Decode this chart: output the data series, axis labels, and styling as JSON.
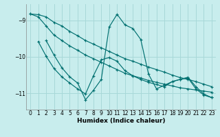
{
  "xlabel": "Humidex (Indice chaleur)",
  "background_color": "#c8eded",
  "grid_color": "#a8d8d8",
  "line_color": "#007070",
  "ylim": [
    -11.45,
    -8.55
  ],
  "xlim": [
    -0.5,
    23.5
  ],
  "yticks": [
    -11,
    -10,
    -9
  ],
  "xticks": [
    0,
    1,
    2,
    3,
    4,
    5,
    6,
    7,
    8,
    9,
    10,
    11,
    12,
    13,
    14,
    15,
    16,
    17,
    18,
    19,
    20,
    21,
    22,
    23
  ],
  "series": [
    {
      "x": [
        0,
        1,
        2,
        3,
        4,
        5,
        6,
        7,
        8,
        9,
        10,
        11,
        12,
        13,
        14,
        15,
        16,
        17,
        18,
        19,
        20,
        21,
        22,
        23
      ],
      "y": [
        -8.82,
        -8.84,
        -8.9,
        -9.05,
        -9.15,
        -9.3,
        -9.42,
        -9.55,
        -9.65,
        -9.75,
        -9.85,
        -9.95,
        -10.05,
        -10.12,
        -10.2,
        -10.28,
        -10.35,
        -10.42,
        -10.5,
        -10.57,
        -10.62,
        -10.68,
        -10.75,
        -10.82
      ]
    },
    {
      "x": [
        0,
        1,
        2,
        3,
        4,
        5,
        6,
        7,
        8,
        9,
        10,
        11,
        12,
        13,
        14,
        15,
        16,
        17,
        18,
        19,
        20,
        21,
        22,
        23
      ],
      "y": [
        -8.82,
        -8.9,
        -9.15,
        -9.4,
        -9.55,
        -9.7,
        -9.82,
        -9.95,
        -10.05,
        -10.15,
        -10.25,
        -10.35,
        -10.45,
        -10.52,
        -10.58,
        -10.65,
        -10.7,
        -10.75,
        -10.8,
        -10.85,
        -10.88,
        -10.91,
        -10.94,
        -10.97
      ]
    },
    {
      "x": [
        2,
        3,
        4,
        5,
        6,
        7,
        8,
        9,
        10,
        11,
        12,
        13,
        14,
        15,
        16,
        17,
        18,
        19,
        20,
        21,
        22,
        23
      ],
      "y": [
        -9.55,
        -9.95,
        -10.3,
        -10.55,
        -10.72,
        -11.18,
        -10.92,
        -10.62,
        -9.18,
        -8.83,
        -9.12,
        -9.22,
        -9.52,
        -10.48,
        -10.88,
        -10.78,
        -10.68,
        -10.62,
        -10.58,
        -10.88,
        -11.05,
        -11.12
      ]
    },
    {
      "x": [
        1,
        2,
        3,
        4,
        5,
        6,
        7,
        8,
        9,
        10,
        11,
        12,
        13,
        14,
        15,
        16,
        17,
        18,
        19,
        20,
        21,
        22,
        23
      ],
      "y": [
        -9.58,
        -9.98,
        -10.32,
        -10.55,
        -10.72,
        -10.88,
        -11.02,
        -10.52,
        -10.08,
        -10.02,
        -10.12,
        -10.38,
        -10.52,
        -10.62,
        -10.7,
        -10.76,
        -10.82,
        -10.68,
        -10.62,
        -10.56,
        -10.82,
        -11.02,
        -11.12
      ]
    }
  ]
}
